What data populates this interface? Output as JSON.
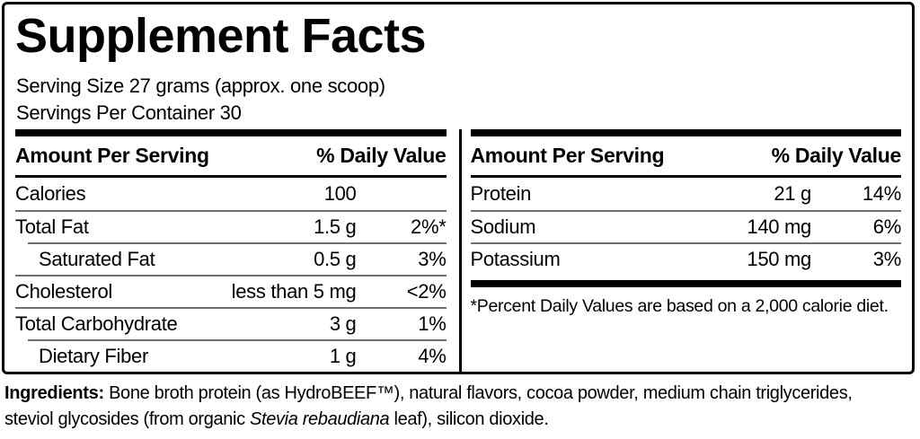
{
  "title": "Supplement Facts",
  "serving": {
    "size": "Serving Size 27 grams (approx. one scoop)",
    "per_container": "Servings Per Container 30"
  },
  "table": {
    "header": {
      "amount": "Amount Per Serving",
      "dv": "% Daily Value"
    },
    "left_rows": [
      {
        "name": "Calories",
        "amount": "100",
        "dv": ""
      },
      {
        "name": "Total Fat",
        "amount": "1.5 g",
        "dv": "2%*"
      },
      {
        "name": "Saturated Fat",
        "amount": "0.5 g",
        "dv": "3%"
      },
      {
        "name": "Cholesterol",
        "amount": "less than 5 mg",
        "dv": "<2%"
      },
      {
        "name": "Total Carbohydrate",
        "amount": "3 g",
        "dv": "1%"
      },
      {
        "name": "Dietary Fiber",
        "amount": "1 g",
        "dv": "4%"
      }
    ],
    "right_rows": [
      {
        "name": "Protein",
        "amount": "21 g",
        "dv": "14%"
      },
      {
        "name": "Sodium",
        "amount": "140 mg",
        "dv": "6%"
      },
      {
        "name": "Potassium",
        "amount": "150 mg",
        "dv": "3%"
      }
    ],
    "footnote": "*Percent Daily Values are based on a 2,000 calorie diet."
  },
  "ingredients": {
    "label": "Ingredients:",
    "line1": " Bone broth protein (as HydroBEEF™), natural flavors, cocoa powder, medium chain triglycerides,",
    "line2_pre": "steviol glycosides (from organic ",
    "line2_italic": "Stevia rebaudiana",
    "line2_post": " leaf), silicon dioxide."
  },
  "colors": {
    "text": "#000000",
    "background": "#ffffff",
    "border": "#000000",
    "row_separator": "#6f6f6f"
  }
}
